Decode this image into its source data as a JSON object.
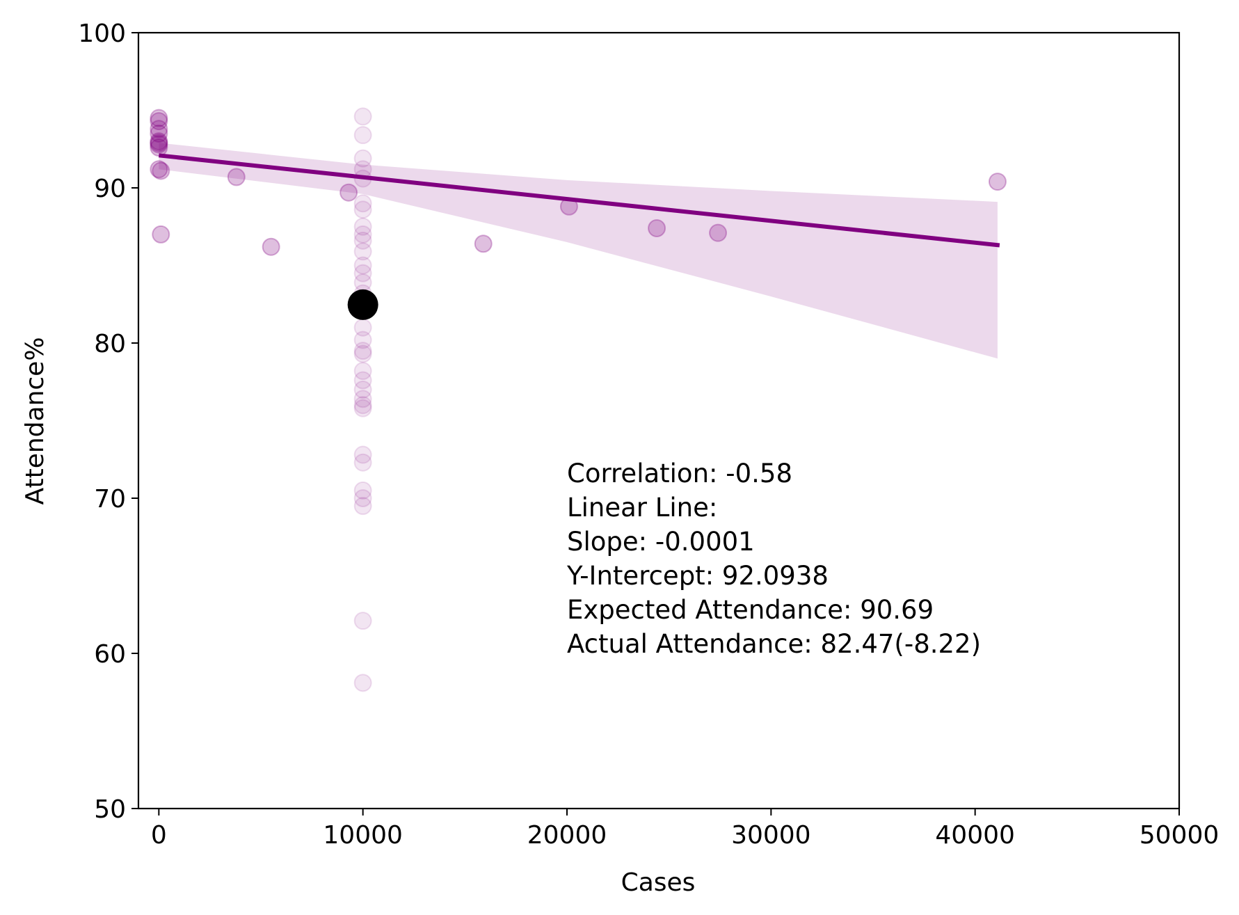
{
  "chart_data": {
    "type": "scatter",
    "xlabel": "Cases",
    "ylabel": "Attendance%",
    "xlim": [
      -1000,
      50000
    ],
    "ylim": [
      50,
      100
    ],
    "x_ticks": [
      0,
      10000,
      20000,
      30000,
      40000,
      50000
    ],
    "x_tick_labels": [
      "0",
      "10000",
      "20000",
      "30000",
      "40000",
      "50000"
    ],
    "y_ticks": [
      50,
      60,
      70,
      80,
      90,
      100
    ],
    "y_tick_labels": [
      "50",
      "60",
      "70",
      "80",
      "90",
      "100"
    ],
    "grid": false,
    "colors": {
      "points": "#800080",
      "regression_line": "#800080",
      "confidence_band": "#800080",
      "highlight": "#000000"
    },
    "points": [
      {
        "x": 0,
        "y": 94.5
      },
      {
        "x": 0,
        "y": 94.3
      },
      {
        "x": 0,
        "y": 93.8
      },
      {
        "x": 0,
        "y": 93.5
      },
      {
        "x": 0,
        "y": 93.0
      },
      {
        "x": 0,
        "y": 92.8
      },
      {
        "x": 0,
        "y": 92.6
      },
      {
        "x": 0,
        "y": 92.9
      },
      {
        "x": 0,
        "y": 91.2
      },
      {
        "x": 100,
        "y": 91.1
      },
      {
        "x": 100,
        "y": 87.0
      },
      {
        "x": 3800,
        "y": 90.7
      },
      {
        "x": 5500,
        "y": 86.2
      },
      {
        "x": 9300,
        "y": 89.7
      },
      {
        "x": 15900,
        "y": 86.4
      },
      {
        "x": 20100,
        "y": 88.8
      },
      {
        "x": 24400,
        "y": 87.4
      },
      {
        "x": 27400,
        "y": 87.1
      },
      {
        "x": 41100,
        "y": 90.4
      }
    ],
    "faint_points": [
      {
        "x": 10000,
        "y": 94.6
      },
      {
        "x": 10000,
        "y": 93.4
      },
      {
        "x": 10000,
        "y": 91.9
      },
      {
        "x": 10000,
        "y": 91.2
      },
      {
        "x": 10000,
        "y": 90.6
      },
      {
        "x": 10000,
        "y": 89.0
      },
      {
        "x": 10000,
        "y": 88.6
      },
      {
        "x": 10000,
        "y": 87.5
      },
      {
        "x": 10000,
        "y": 87.0
      },
      {
        "x": 10000,
        "y": 86.6
      },
      {
        "x": 10000,
        "y": 85.9
      },
      {
        "x": 10000,
        "y": 85.0
      },
      {
        "x": 10000,
        "y": 84.5
      },
      {
        "x": 10000,
        "y": 83.9
      },
      {
        "x": 10000,
        "y": 83.2
      },
      {
        "x": 10000,
        "y": 82.1
      },
      {
        "x": 10000,
        "y": 81.0
      },
      {
        "x": 10000,
        "y": 80.2
      },
      {
        "x": 10000,
        "y": 79.5
      },
      {
        "x": 10000,
        "y": 79.3
      },
      {
        "x": 10000,
        "y": 78.2
      },
      {
        "x": 10000,
        "y": 77.6
      },
      {
        "x": 10000,
        "y": 77.0
      },
      {
        "x": 10000,
        "y": 76.4
      },
      {
        "x": 10000,
        "y": 76.0
      },
      {
        "x": 10000,
        "y": 75.8
      },
      {
        "x": 10000,
        "y": 72.8
      },
      {
        "x": 10000,
        "y": 72.3
      },
      {
        "x": 10000,
        "y": 70.5
      },
      {
        "x": 10000,
        "y": 70.0
      },
      {
        "x": 10000,
        "y": 69.5
      },
      {
        "x": 10000,
        "y": 62.1
      },
      {
        "x": 10000,
        "y": 58.1
      }
    ],
    "highlight_point": {
      "x": 10000,
      "y": 82.47
    },
    "regression_line": {
      "x": [
        0,
        41200
      ],
      "y": [
        92.0938,
        86.3
      ]
    },
    "confidence_band": {
      "x": [
        0,
        10000,
        20000,
        30000,
        41100
      ],
      "upper": [
        92.9,
        91.5,
        90.5,
        89.8,
        89.1
      ],
      "lower": [
        91.2,
        89.6,
        86.5,
        83.0,
        79.0
      ]
    },
    "annotation_lines": [
      "Correlation: -0.58",
      "Linear Line:",
      "Slope: -0.0001",
      "Y-Intercept: 92.0938",
      "Expected Attendance: 90.69",
      "Actual Attendance: 82.47(-8.22)"
    ]
  }
}
